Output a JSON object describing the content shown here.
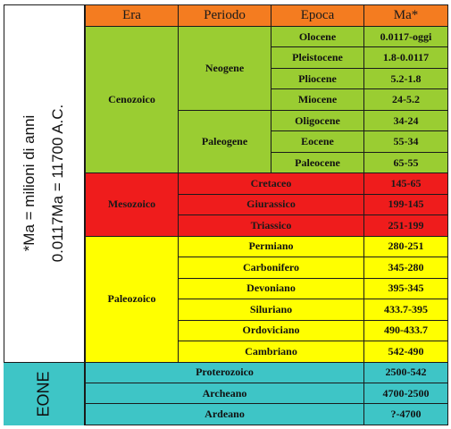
{
  "side_note": {
    "line1": "*Ma = milioni di anni",
    "line2": "0.0117Ma = 11700 A.C."
  },
  "eone_label": "EONE",
  "header": {
    "era": "Era",
    "periodo": "Periodo",
    "epoca": "Epoca",
    "ma": "Ma*"
  },
  "cenozoico": {
    "era": "Cenozoico",
    "neogene": "Neogene",
    "paleogene": "Paleogene",
    "rows": [
      {
        "epoca": "Olocene",
        "ma": "0.0117-oggi"
      },
      {
        "epoca": "Pleistocene",
        "ma": "1.8-0.0117"
      },
      {
        "epoca": "Pliocene",
        "ma": "5.2-1.8"
      },
      {
        "epoca": "Miocene",
        "ma": "24-5.2"
      },
      {
        "epoca": "Oligocene",
        "ma": "34-24"
      },
      {
        "epoca": "Eocene",
        "ma": "55-34"
      },
      {
        "epoca": "Paleocene",
        "ma": "65-55"
      }
    ]
  },
  "mesozoico": {
    "era": "Mesozoico",
    "rows": [
      {
        "periodo": "Cretaceo",
        "ma": "145-65"
      },
      {
        "periodo": "Giurassico",
        "ma": "199-145"
      },
      {
        "periodo": "Triassico",
        "ma": "251-199"
      }
    ]
  },
  "paleozoico": {
    "era": "Paleozoico",
    "rows": [
      {
        "periodo": "Permiano",
        "ma": "280-251"
      },
      {
        "periodo": "Carbonifero",
        "ma": "345-280"
      },
      {
        "periodo": "Devoniano",
        "ma": "395-345"
      },
      {
        "periodo": "Siluriano",
        "ma": "433.7-395"
      },
      {
        "periodo": "Ordoviciano",
        "ma": "490-433.7"
      },
      {
        "periodo": "Cambriano",
        "ma": "542-490"
      }
    ]
  },
  "eoni": {
    "rows": [
      {
        "nome": "Proterozoico",
        "ma": "2500-542"
      },
      {
        "nome": "Archeano",
        "ma": "4700-2500"
      },
      {
        "nome": "Ardeano",
        "ma": "?-4700"
      }
    ]
  },
  "colors": {
    "header": "#f47c20",
    "cenozoico": "#9acd32",
    "mesozoico": "#ef1c1c",
    "paleozoico": "#ffff00",
    "eoni": "#3ec5c6"
  }
}
